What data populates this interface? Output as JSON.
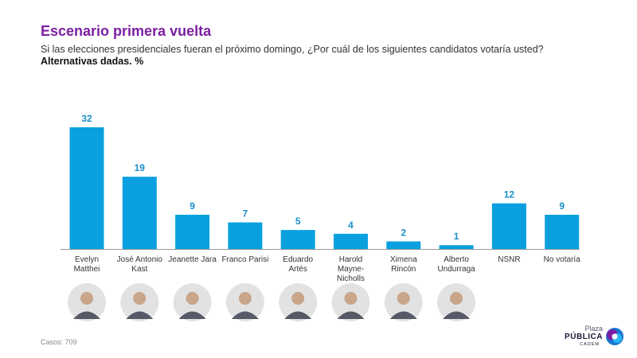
{
  "title": "Escenario primera vuelta",
  "subtitle": "Si las elecciones presidenciales fueran el próximo domingo, ¿Por cuál de los siguientes candidatos votaría usted?",
  "note": "Alternativas dadas. %",
  "footer": {
    "casos": "Casos: 709"
  },
  "logo": {
    "line1": "Plaza",
    "line2": "PÚBLICA",
    "line3": "CADEM"
  },
  "colors": {
    "bar": "#0aa0e0",
    "title": "#7b1fa2",
    "value": "#1a8fc8",
    "axis": "#999999"
  },
  "chart_data": {
    "type": "bar",
    "categories": [
      [
        "Evelyn",
        "Matthei"
      ],
      [
        "José Antonio",
        "Kast"
      ],
      [
        "Jeanette Jara"
      ],
      [
        "Franco Parisi"
      ],
      [
        "Eduardo",
        "Artés"
      ],
      [
        "Harold",
        "Mayne-",
        "Nicholls"
      ],
      [
        "Ximena",
        "Rincón"
      ],
      [
        "Alberto",
        "Undurraga"
      ],
      [
        "NSNR"
      ],
      [
        "No votaría"
      ]
    ],
    "values": [
      32,
      19,
      9,
      7,
      5,
      4,
      2,
      1,
      12,
      9
    ],
    "ylim": [
      0,
      32
    ],
    "portraits": [
      true,
      true,
      true,
      true,
      true,
      true,
      true,
      true,
      false,
      false
    ]
  }
}
